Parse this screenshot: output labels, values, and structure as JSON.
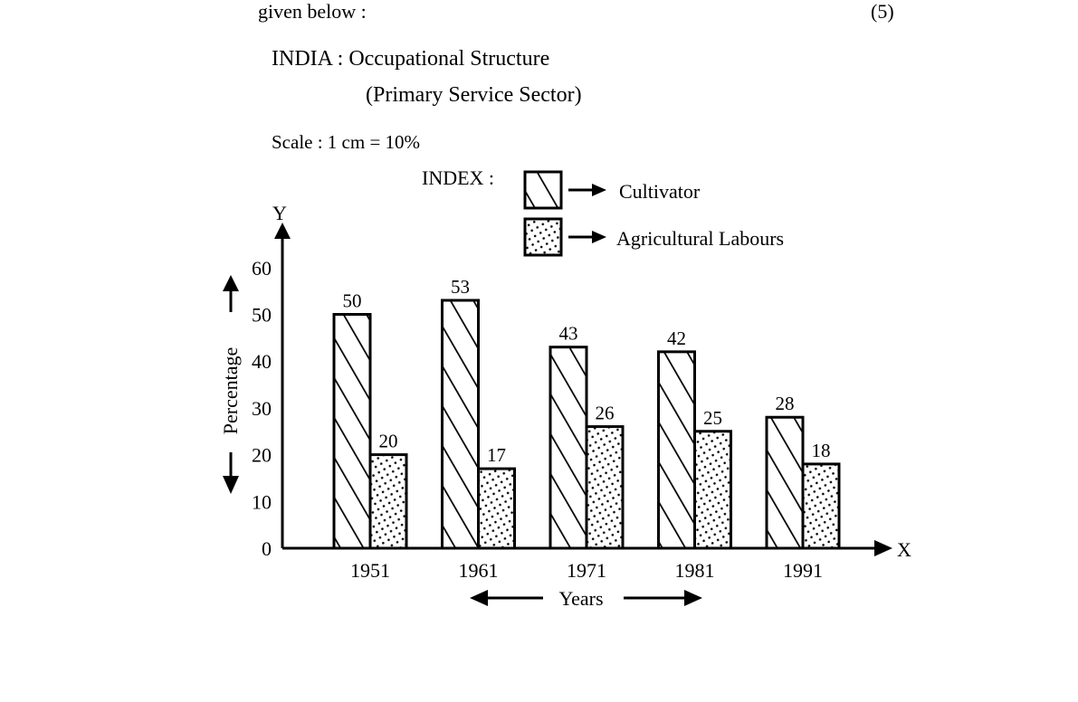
{
  "header": {
    "intro": "given below :",
    "marks": "(5)"
  },
  "figure": {
    "title_line1": "INDIA : Occupational Structure",
    "title_line2": "(Primary Service Sector)",
    "scale": "Scale : 1 cm = 10%",
    "index_label": "INDEX :"
  },
  "chart_data": {
    "type": "bar",
    "title": "INDIA : Occupational Structure (Primary Service Sector)",
    "categories": [
      "1951",
      "1961",
      "1971",
      "1981",
      "1991"
    ],
    "series": [
      {
        "name": "Cultivator",
        "values": [
          50,
          53,
          43,
          42,
          28
        ],
        "pattern": "diagonal-hatch"
      },
      {
        "name": "Agricultural Labours",
        "values": [
          20,
          17,
          26,
          25,
          18
        ],
        "pattern": "dots"
      }
    ],
    "xlabel": "Years",
    "ylabel": "Percentage",
    "x_axis_letter": "X",
    "y_axis_letter": "Y",
    "ylim": [
      0,
      60
    ],
    "yticks": [
      "0",
      "10",
      "20",
      "30",
      "40",
      "50",
      "60"
    ],
    "grid": false,
    "legend_position": "top-right"
  }
}
